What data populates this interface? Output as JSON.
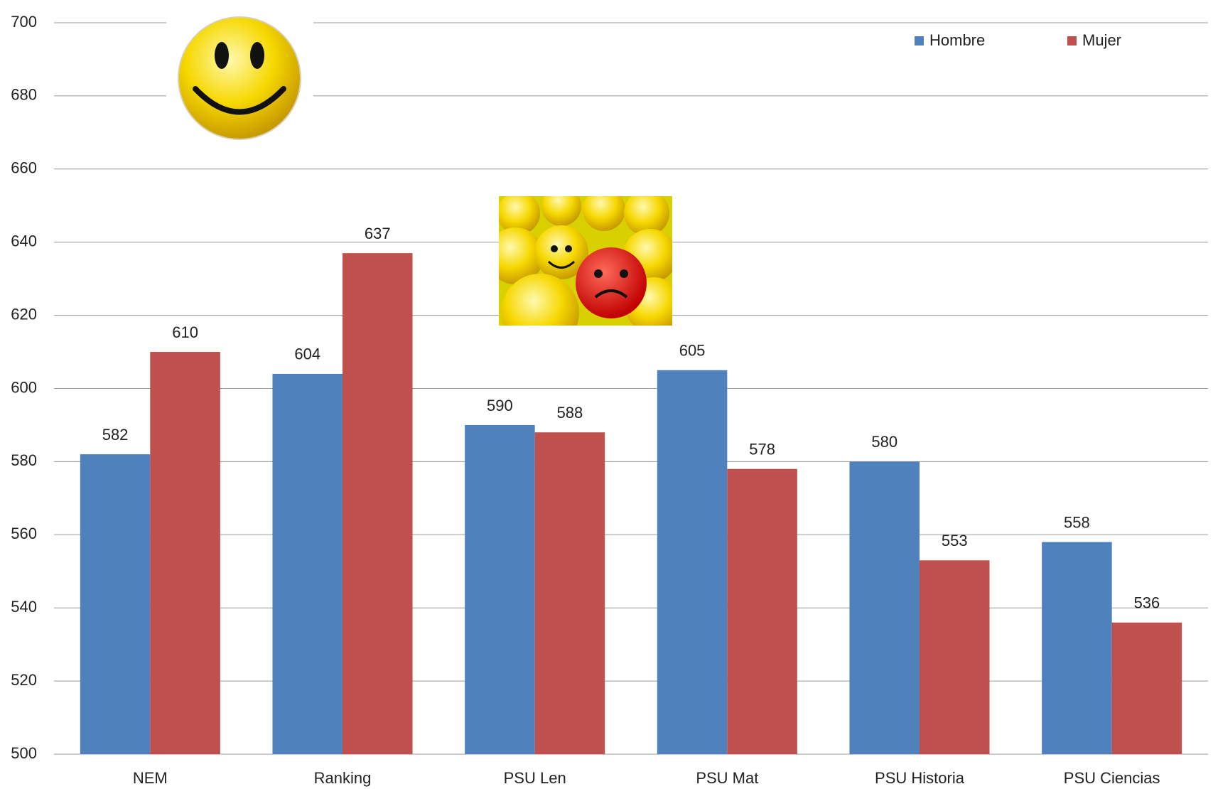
{
  "chart_data": {
    "type": "bar",
    "categories": [
      "NEM",
      "Ranking",
      "PSU Len",
      "PSU Mat",
      "PSU Historia",
      "PSU Ciencias"
    ],
    "series": [
      {
        "name": "Hombre",
        "color": "#4f81bd",
        "values": [
          582,
          604,
          590,
          605,
          580,
          558
        ]
      },
      {
        "name": "Mujer",
        "color": "#c0504d",
        "values": [
          610,
          637,
          588,
          578,
          553,
          536
        ]
      }
    ],
    "ylim": [
      500,
      700
    ],
    "yticks": [
      500,
      520,
      540,
      560,
      580,
      600,
      620,
      640,
      660,
      680,
      700
    ],
    "grid": true,
    "legend": "top-right"
  }
}
